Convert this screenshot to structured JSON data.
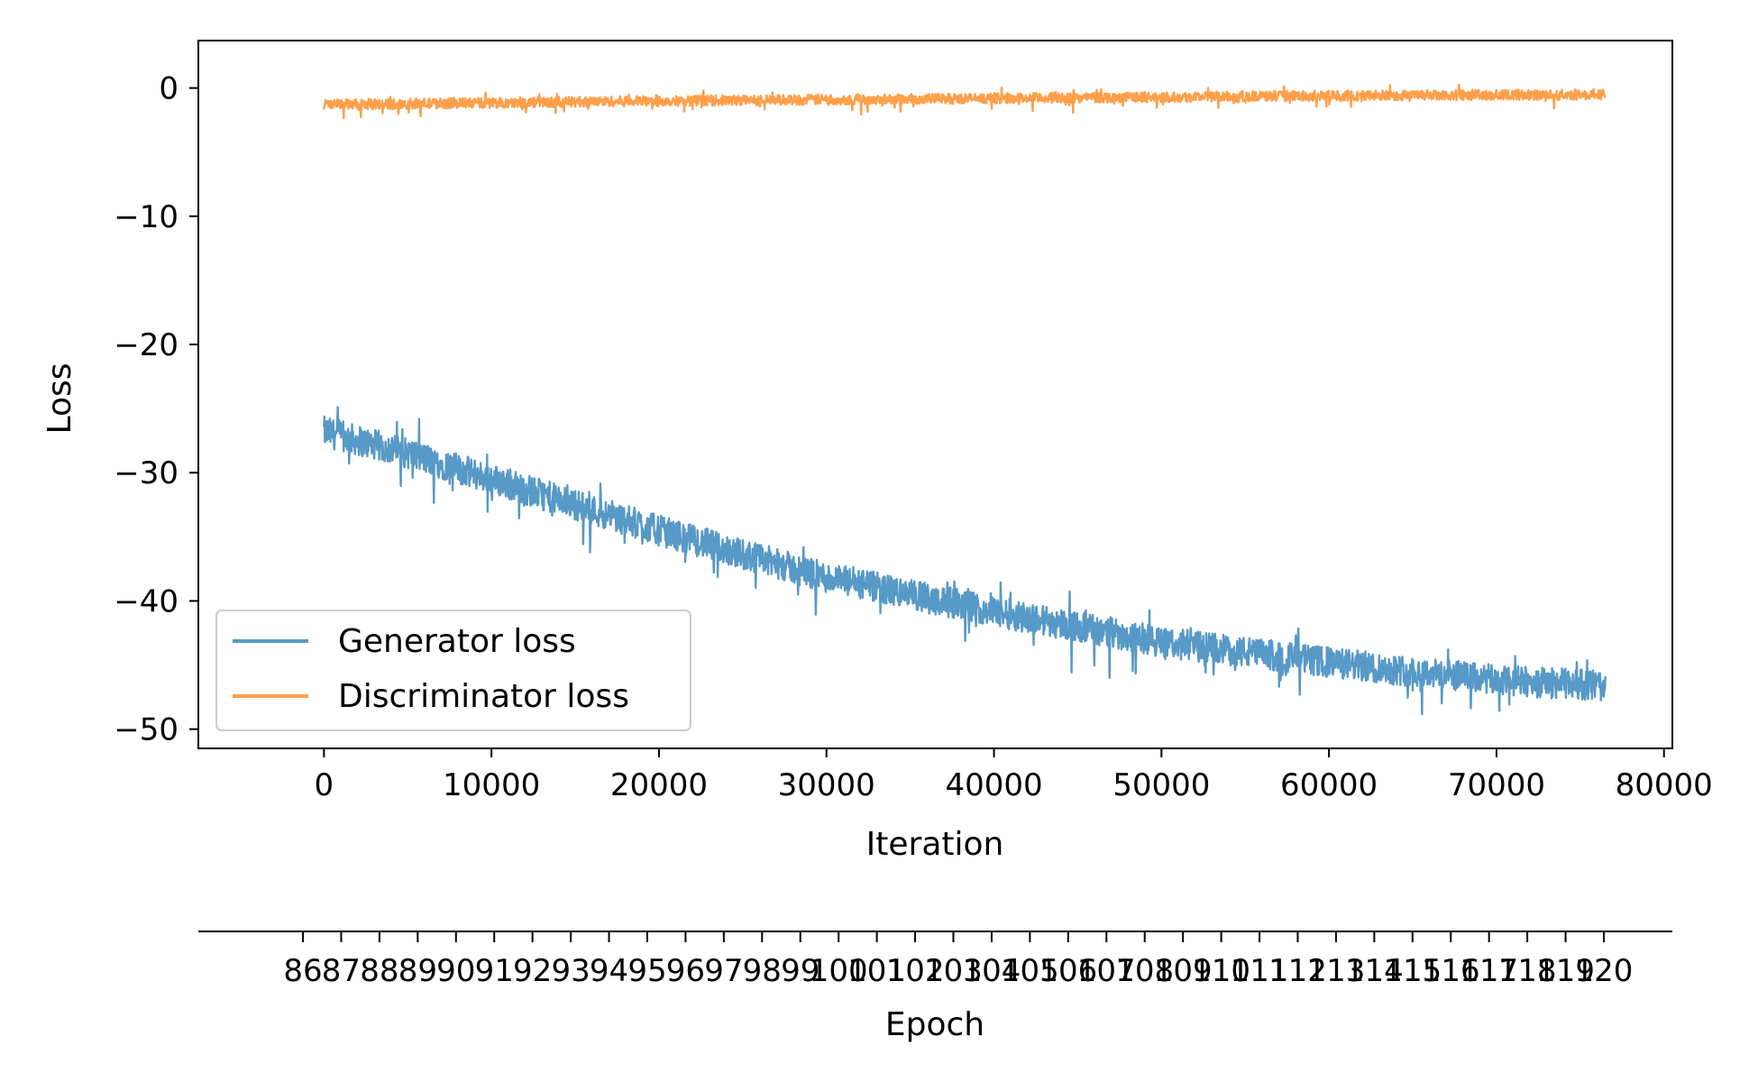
{
  "chart_data": {
    "type": "line",
    "title": "",
    "xlabel": "Iteration",
    "ylabel": "Loss",
    "secondary_xlabel": "Epoch",
    "xlim": [
      -7500,
      80500
    ],
    "ylim": [
      -51.5,
      3.7
    ],
    "x_ticks": [
      0,
      10000,
      20000,
      30000,
      40000,
      50000,
      60000,
      70000,
      80000
    ],
    "x_tick_labels": [
      "0",
      "10000",
      "20000",
      "30000",
      "40000",
      "50000",
      "60000",
      "70000",
      "80000"
    ],
    "y_ticks": [
      0,
      -10,
      -20,
      -30,
      -40,
      -50
    ],
    "y_tick_labels": [
      "0",
      "−10",
      "−20",
      "−30",
      "−40",
      "−50"
    ],
    "epoch_ticks": {
      "start_epoch": 86,
      "end_epoch": 120,
      "labels": [
        "86",
        "87",
        "88",
        "89",
        "90",
        "91",
        "92",
        "93",
        "94",
        "95",
        "96",
        "97",
        "98",
        "99",
        "100",
        "101",
        "102",
        "103",
        "104",
        "105",
        "106",
        "107",
        "108",
        "109",
        "110",
        "111",
        "112",
        "113",
        "114",
        "115",
        "116",
        "117",
        "118",
        "119",
        "120"
      ]
    },
    "legend_position": "lower-left",
    "grid": false,
    "series": [
      {
        "name": "Generator loss",
        "color": "#5799c7",
        "trend_x": [
          0,
          5000,
          10000,
          20000,
          30000,
          40000,
          50000,
          60000,
          70000,
          76500
        ],
        "trend_y": [
          -26.8,
          -28.5,
          -30.5,
          -34.5,
          -38.2,
          -40.8,
          -43.2,
          -44.8,
          -46.2,
          -46.6
        ],
        "noise_amplitude": 1.2
      },
      {
        "name": "Discriminator loss",
        "color": "#ff9f4a",
        "trend_x": [
          0,
          20000,
          40000,
          60000,
          76500
        ],
        "trend_y": [
          -1.3,
          -1.0,
          -0.8,
          -0.6,
          -0.5
        ],
        "noise_amplitude": 0.4
      }
    ]
  }
}
